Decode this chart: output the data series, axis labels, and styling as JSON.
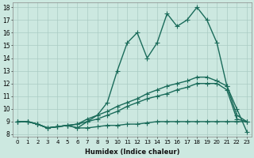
{
  "xlabel": "Humidex (Indice chaleur)",
  "xlim": [
    -0.5,
    23.5
  ],
  "ylim": [
    7.8,
    18.4
  ],
  "xticks": [
    0,
    1,
    2,
    3,
    4,
    5,
    6,
    7,
    8,
    9,
    10,
    11,
    12,
    13,
    14,
    15,
    16,
    17,
    18,
    19,
    20,
    21,
    22,
    23
  ],
  "yticks": [
    8,
    9,
    10,
    11,
    12,
    13,
    14,
    15,
    16,
    17,
    18
  ],
  "bg_color": "#cce8e0",
  "grid_color": "#aaccC4",
  "line_color": "#1a6b5a",
  "line_width": 1.0,
  "marker": "+",
  "marker_size": 4,
  "lines": [
    [
      9.0,
      9.0,
      8.8,
      8.5,
      8.6,
      8.7,
      8.5,
      8.5,
      8.6,
      8.7,
      8.7,
      8.8,
      8.8,
      8.9,
      9.0,
      9.0,
      9.0,
      9.0,
      9.0,
      9.0,
      9.0,
      9.0,
      9.0,
      9.0
    ],
    [
      9.0,
      9.0,
      8.8,
      8.5,
      8.6,
      8.7,
      8.8,
      9.0,
      9.2,
      9.5,
      9.8,
      10.2,
      10.5,
      10.8,
      11.0,
      11.2,
      11.5,
      11.7,
      12.0,
      12.0,
      12.0,
      11.5,
      9.2,
      9.0
    ],
    [
      9.0,
      9.0,
      8.8,
      8.5,
      8.6,
      8.7,
      8.8,
      9.2,
      9.5,
      9.8,
      10.2,
      10.5,
      10.8,
      11.2,
      11.5,
      11.8,
      12.0,
      12.2,
      12.5,
      12.5,
      12.2,
      11.8,
      9.5,
      9.0
    ],
    [
      9.0,
      9.0,
      8.8,
      8.5,
      8.6,
      8.7,
      8.5,
      9.0,
      9.5,
      10.5,
      13.0,
      15.2,
      16.0,
      14.0,
      15.2,
      17.5,
      16.5,
      17.0,
      18.0,
      17.0,
      15.2,
      11.8,
      10.0,
      8.2
    ]
  ]
}
